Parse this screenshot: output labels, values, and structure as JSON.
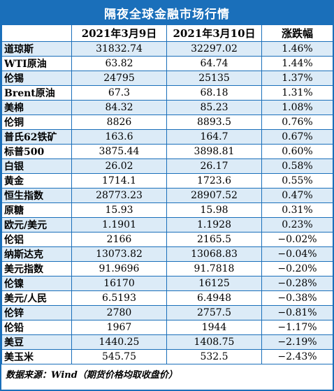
{
  "title": "隔夜全球金融市场行情",
  "headers": {
    "name": "",
    "date1": "2021年3月9日",
    "date2": "2021年3月10日",
    "change": "涨跌幅"
  },
  "rows": [
    {
      "name": "道琼斯",
      "d1": "31832.74",
      "d2": "32297.02",
      "chg": "1.46%"
    },
    {
      "name": "WTI原油",
      "d1": "63.82",
      "d2": "64.74",
      "chg": "1.44%"
    },
    {
      "name": "伦锡",
      "d1": "24795",
      "d2": "25135",
      "chg": "1.37%"
    },
    {
      "name": "Brent原油",
      "d1": "67.3",
      "d2": "68.18",
      "chg": "1.31%"
    },
    {
      "name": "美棉",
      "d1": "84.32",
      "d2": "85.23",
      "chg": "1.08%"
    },
    {
      "name": "伦铜",
      "d1": "8826",
      "d2": "8893.5",
      "chg": "0.76%"
    },
    {
      "name": "普氏62铁矿",
      "d1": "163.6",
      "d2": "164.7",
      "chg": "0.67%"
    },
    {
      "name": "标普500",
      "d1": "3875.44",
      "d2": "3898.81",
      "chg": "0.60%"
    },
    {
      "name": "白银",
      "d1": "26.02",
      "d2": "26.17",
      "chg": "0.58%"
    },
    {
      "name": "黄金",
      "d1": "1714.1",
      "d2": "1723.6",
      "chg": "0.55%"
    },
    {
      "name": "恒生指数",
      "d1": "28773.23",
      "d2": "28907.52",
      "chg": "0.47%"
    },
    {
      "name": "原糖",
      "d1": "15.93",
      "d2": "15.98",
      "chg": "0.31%"
    },
    {
      "name": "欧元/美元",
      "d1": "1.1901",
      "d2": "1.1928",
      "chg": "0.23%"
    },
    {
      "name": "伦铝",
      "d1": "2166",
      "d2": "2165.5",
      "chg": "−0.02%"
    },
    {
      "name": "纳斯达克",
      "d1": "13073.82",
      "d2": "13068.83",
      "chg": "−0.04%"
    },
    {
      "name": "美元指数",
      "d1": "91.9696",
      "d2": "91.7818",
      "chg": "−0.20%"
    },
    {
      "name": "伦镍",
      "d1": "16170",
      "d2": "16125",
      "chg": "−0.28%"
    },
    {
      "name": "美元/人民",
      "d1": "6.5193",
      "d2": "6.4948",
      "chg": "−0.38%"
    },
    {
      "name": "伦锌",
      "d1": "2780",
      "d2": "2757.5",
      "chg": "−0.81%"
    },
    {
      "name": "伦铅",
      "d1": "1967",
      "d2": "1944",
      "chg": "−1.17%"
    },
    {
      "name": "美豆",
      "d1": "1440.25",
      "d2": "1408.75",
      "chg": "−2.19%"
    },
    {
      "name": "美玉米",
      "d1": "545.75",
      "d2": "532.5",
      "chg": "−2.43%"
    }
  ],
  "source": "数据来源：Wind（期货价格均取收盘价）"
}
